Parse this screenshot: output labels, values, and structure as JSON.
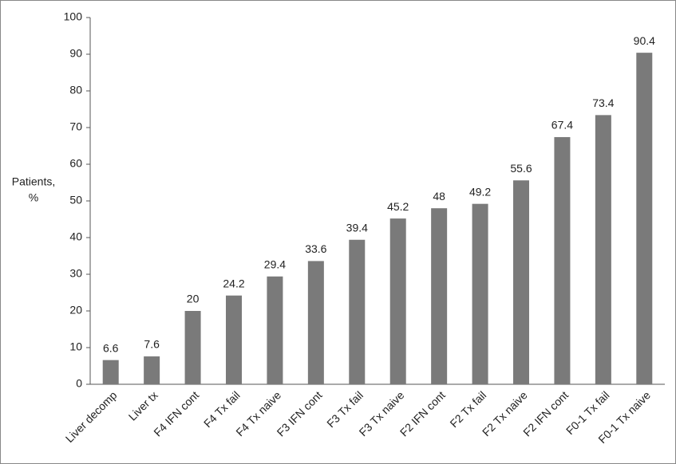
{
  "chart_data": {
    "type": "bar",
    "ylabel": [
      "Patients,",
      "%"
    ],
    "categories": [
      "Liver decomp",
      "Liver tx",
      "F4 IFN cont",
      "F4 Tx fail",
      "F4 Tx naive",
      "F3 IFN cont",
      "F3 Tx fail",
      "F3 Tx naive",
      "F2 IFN cont",
      "F2 Tx fail",
      "F2 Tx naive",
      "F2 IFN cont",
      "F0-1 Tx fail",
      "F0-1 Tx naive"
    ],
    "values": [
      6.6,
      7.6,
      20,
      24.2,
      29.4,
      33.6,
      39.4,
      45.2,
      48,
      49.2,
      55.6,
      67.4,
      73.4,
      90.4
    ],
    "color": "#7a7a7a",
    "ylim": [
      0,
      100
    ],
    "yticks": [
      0,
      10,
      20,
      30,
      40,
      50,
      60,
      70,
      80,
      90,
      100
    ],
    "grid": false
  }
}
